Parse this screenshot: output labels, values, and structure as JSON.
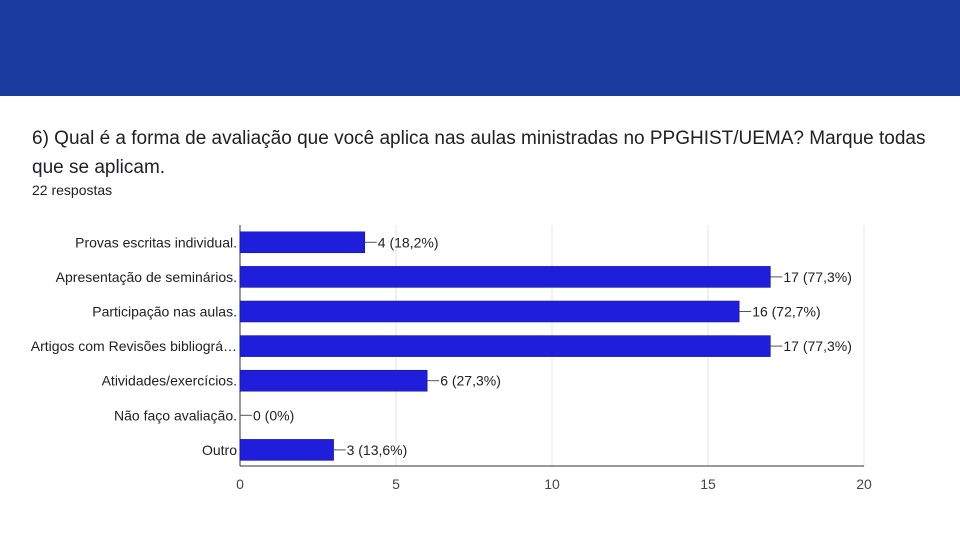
{
  "colors": {
    "header_band": "#1a3a9e",
    "bar": "#1f1fdb",
    "grid": "#e6e6e6",
    "axis": "#333333"
  },
  "question": {
    "title": "6) Qual é a forma de avaliação que você aplica nas aulas ministradas no PPGHIST/UEMA?  Marque todas que se aplicam.",
    "responses": "22 respostas"
  },
  "chart_data": {
    "type": "bar",
    "orientation": "horizontal",
    "categories": [
      "Provas escritas individual.",
      "Apresentação de seminários.",
      "Participação nas aulas.",
      "Artigos com Revisões bibliográ…",
      "Atividades/exercícios.",
      "Não faço avaliação.",
      "Outro"
    ],
    "values": [
      4,
      17,
      16,
      17,
      6,
      0,
      3
    ],
    "data_labels": [
      "4 (18,2%)",
      "17 (77,3%)",
      "16 (72,7%)",
      "17 (77,3%)",
      "6 (27,3%)",
      "0 (0%)",
      "3 (13,6%)"
    ],
    "x_ticks": [
      "0",
      "5",
      "10",
      "15",
      "20"
    ],
    "xlim": [
      0,
      20
    ],
    "grid": true
  }
}
